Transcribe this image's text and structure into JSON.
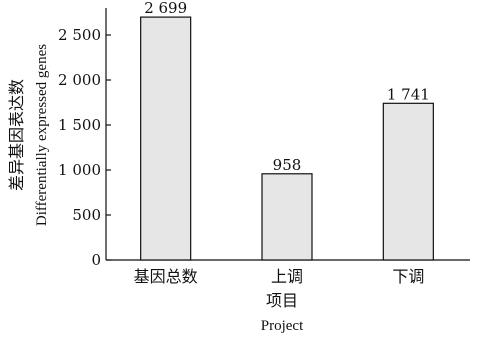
{
  "chart_data": {
    "type": "bar",
    "categories": [
      "基因总数",
      "上调",
      "下调"
    ],
    "values": [
      2699,
      958,
      1741
    ],
    "value_labels": [
      "2 699",
      "958",
      "1 741"
    ],
    "xlabel": "项目",
    "xlabel_en": "Project",
    "ylabel": "差异基因表达数",
    "ylabel_en": "Differentially expressed genes",
    "ylim": [
      0,
      2800
    ],
    "yticks": [
      0,
      500,
      1000,
      1500,
      2000,
      2500
    ],
    "ytick_labels": [
      "0",
      "500",
      "1 000",
      "1 500",
      "2 000",
      "2 500"
    ],
    "grid": false,
    "bar_color": "#e6e6e6",
    "edge_color": "#111111"
  }
}
